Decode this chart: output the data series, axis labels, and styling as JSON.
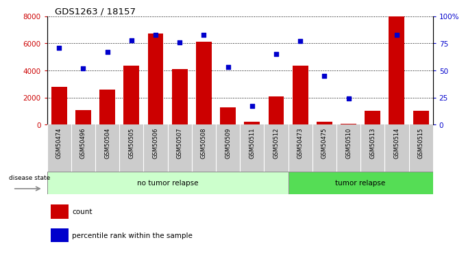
{
  "title": "GDS1263 / 18157",
  "samples": [
    "GSM50474",
    "GSM50496",
    "GSM50504",
    "GSM50505",
    "GSM50506",
    "GSM50507",
    "GSM50508",
    "GSM50509",
    "GSM50511",
    "GSM50512",
    "GSM50473",
    "GSM50475",
    "GSM50510",
    "GSM50513",
    "GSM50514",
    "GSM50515"
  ],
  "counts": [
    2800,
    1100,
    2600,
    4350,
    6700,
    4100,
    6100,
    1300,
    200,
    2100,
    4350,
    200,
    50,
    1000,
    8000,
    1000
  ],
  "percentiles": [
    71,
    52,
    67,
    78,
    83,
    76,
    83,
    53,
    17,
    65,
    77,
    45,
    24,
    null,
    83,
    null
  ],
  "group1_label": "no tumor relapse",
  "group2_label": "tumor relapse",
  "group1_count": 10,
  "group2_count": 6,
  "ylim_left": [
    0,
    8000
  ],
  "ylim_right": [
    0,
    100
  ],
  "left_ticks": [
    0,
    2000,
    4000,
    6000,
    8000
  ],
  "right_ticks": [
    0,
    25,
    50,
    75,
    100
  ],
  "right_tick_labels": [
    "0",
    "25",
    "50",
    "75",
    "100%"
  ],
  "bar_color": "#cc0000",
  "scatter_color": "#0000cc",
  "group1_bg": "#ccffcc",
  "group2_bg": "#55dd55",
  "xticklabel_bg": "#cccccc",
  "legend_count_label": "count",
  "legend_pct_label": "percentile rank within the sample"
}
